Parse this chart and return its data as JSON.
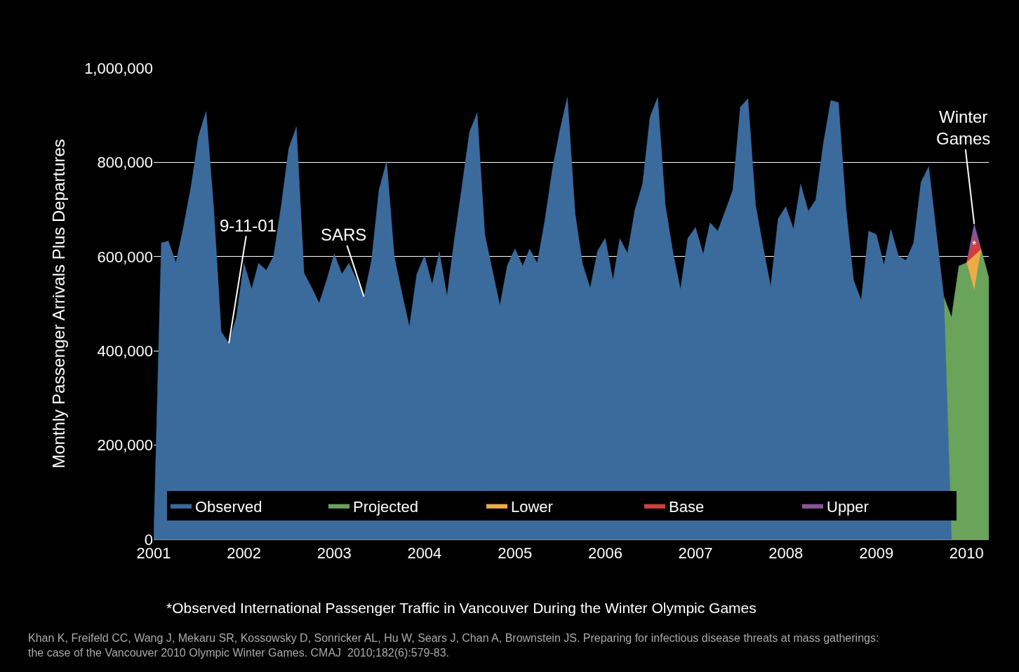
{
  "chart_data": {
    "type": "area",
    "ylabel": "Monthly Passenger Arrivals Plus Departures",
    "xlim": [
      "2001-01",
      "2010-04"
    ],
    "xticks": [
      {
        "value": "2001-01",
        "label": "2001"
      },
      {
        "value": "2002-01",
        "label": "2002"
      },
      {
        "value": "2003-01",
        "label": "2003"
      },
      {
        "value": "2004-01",
        "label": "2004"
      },
      {
        "value": "2005-01",
        "label": "2005"
      },
      {
        "value": "2006-01",
        "label": "2006"
      },
      {
        "value": "2007-01",
        "label": "2007"
      },
      {
        "value": "2008-01",
        "label": "2008"
      },
      {
        "value": "2009-01",
        "label": "2009"
      },
      {
        "value": "2010-01",
        "label": "2010"
      }
    ],
    "ylim": [
      0,
      1000000
    ],
    "yticks": [
      {
        "value": 0,
        "label": "0"
      },
      {
        "value": 200000,
        "label": "200,000"
      },
      {
        "value": 400000,
        "label": "400,000"
      },
      {
        "value": 600000,
        "label": "600,000"
      },
      {
        "value": 800000,
        "label": "800,000"
      },
      {
        "value": 1000000,
        "label": "1,000,000"
      }
    ],
    "grid": "y",
    "legend": "bottom",
    "series": [
      {
        "name": "Observed",
        "color": "#3b6b9c",
        "x": [
          "2001-01",
          "2001-02",
          "2001-03",
          "2001-04",
          "2001-05",
          "2001-06",
          "2001-07",
          "2001-08",
          "2001-09",
          "2001-10",
          "2001-11",
          "2001-12",
          "2002-01",
          "2002-02",
          "2002-03",
          "2002-04",
          "2002-05",
          "2002-06",
          "2002-07",
          "2002-08",
          "2002-09",
          "2002-10",
          "2002-11",
          "2002-12",
          "2003-01",
          "2003-02",
          "2003-03",
          "2003-04",
          "2003-05",
          "2003-06",
          "2003-07",
          "2003-08",
          "2003-09",
          "2003-10",
          "2003-11",
          "2003-12",
          "2004-01",
          "2004-02",
          "2004-03",
          "2004-04",
          "2004-05",
          "2004-06",
          "2004-07",
          "2004-08",
          "2004-09",
          "2004-10",
          "2004-11",
          "2004-12",
          "2005-01",
          "2005-02",
          "2005-03",
          "2005-04",
          "2005-05",
          "2005-06",
          "2005-07",
          "2005-08",
          "2005-09",
          "2005-10",
          "2005-11",
          "2005-12",
          "2006-01",
          "2006-02",
          "2006-03",
          "2006-04",
          "2006-05",
          "2006-06",
          "2006-07",
          "2006-08",
          "2006-09",
          "2006-10",
          "2006-11",
          "2006-12",
          "2007-01",
          "2007-02",
          "2007-03",
          "2007-04",
          "2007-05",
          "2007-06",
          "2007-07",
          "2007-08",
          "2007-09",
          "2007-10",
          "2007-11",
          "2007-12",
          "2008-01",
          "2008-02",
          "2008-03",
          "2008-04",
          "2008-05",
          "2008-06",
          "2008-07",
          "2008-08",
          "2008-09",
          "2008-10",
          "2008-11",
          "2008-12",
          "2009-01",
          "2009-02",
          "2009-03",
          "2009-04",
          "2009-05",
          "2009-06",
          "2009-07",
          "2009-08",
          "2009-09",
          "2009-10",
          "2009-11"
        ],
        "values": [
          0,
          629000,
          633000,
          587000,
          662000,
          748000,
          855000,
          908000,
          700000,
          441000,
          416000,
          471000,
          586000,
          531000,
          586000,
          571000,
          601000,
          709000,
          829000,
          875000,
          565000,
          535000,
          501000,
          549000,
          606000,
          563000,
          586000,
          552000,
          515000,
          592000,
          741000,
          802000,
          600000,
          524000,
          451000,
          563000,
          602000,
          541000,
          610000,
          516000,
          637000,
          750000,
          864000,
          905000,
          647000,
          572000,
          496000,
          581000,
          617000,
          580000,
          616000,
          586000,
          674000,
          784000,
          867000,
          938000,
          692000,
          585000,
          533000,
          612000,
          639000,
          550000,
          638000,
          607000,
          699000,
          754000,
          896000,
          938000,
          709000,
          611000,
          530000,
          639000,
          662000,
          605000,
          672000,
          654000,
          696000,
          741000,
          917000,
          935000,
          709000,
          621000,
          536000,
          680000,
          706000,
          658000,
          754000,
          696000,
          720000,
          840000,
          931000,
          927000,
          700000,
          550000,
          507000,
          654000,
          647000,
          582000,
          658000,
          601000,
          592000,
          629000,
          758000,
          791000,
          650000,
          515000,
          0
        ]
      },
      {
        "name": "Projected",
        "color": "#6aa35a",
        "x": [
          "2009-10",
          "2009-11",
          "2009-12",
          "2010-01",
          "2010-02",
          "2010-03",
          "2010-04"
        ],
        "values": [
          515000,
          471000,
          580000,
          587000,
          528000,
          615000,
          555000
        ]
      },
      {
        "name": "Lower",
        "color": "#f0ab47",
        "x": [
          "2010-01",
          "2010-02",
          "2010-03"
        ],
        "values": [
          587000,
          602000,
          615000
        ]
      },
      {
        "name": "Base",
        "color": "#d0403c",
        "x": [
          "2010-01",
          "2010-02",
          "2010-03"
        ],
        "values": [
          587000,
          642000,
          615000
        ]
      },
      {
        "name": "Upper",
        "color": "#87559a",
        "x": [
          "2010-01",
          "2010-02",
          "2010-03"
        ],
        "values": [
          587000,
          669000,
          615000
        ]
      }
    ],
    "annotations": [
      {
        "text": "9-11-01",
        "x": "2001-11",
        "y": 416000
      },
      {
        "text": "SARS",
        "x": "2003-05",
        "y": 515000
      },
      {
        "text": "Winter\nGames",
        "x": "2010-02",
        "y": 669000
      },
      {
        "text": "*",
        "x": "2010-02",
        "y": 642000
      },
      "*Observed International Passenger Traffic in Vancouver During the Winter Olympic Games",
      "Khan K, Freifeld CC, Wang J, Mekaru SR, Kossowsky D, Sonricker AL, Hu W, Sears J, Chan A, Brownstein JS. Preparing for infectious disease threats at mass gatherings:\nthe case of the Vancouver 2010 Olympic Winter Games. CMAJ  2010;182(6):579-83."
    ]
  }
}
